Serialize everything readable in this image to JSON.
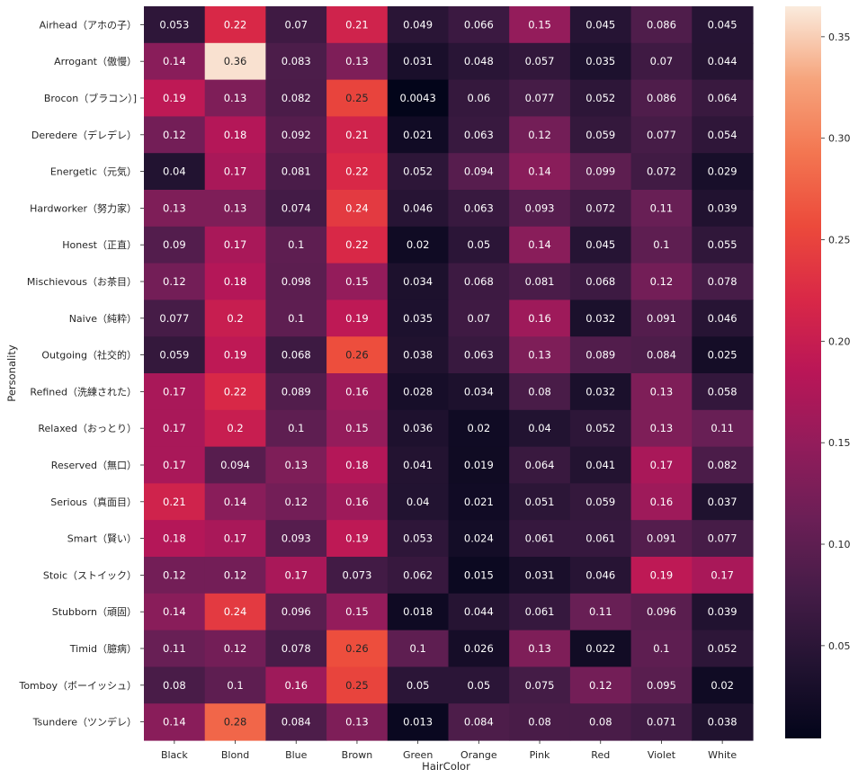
{
  "chart_data": {
    "type": "heatmap",
    "title": "",
    "xlabel": "HairColor",
    "ylabel": "Personality",
    "x_categories": [
      "Black",
      "Blond",
      "Blue",
      "Brown",
      "Green",
      "Orange",
      "Pink",
      "Red",
      "Violet",
      "White"
    ],
    "y_categories": [
      "Airhead（アホの子）",
      "Arrogant（傲慢）",
      "Brocon（ブラコン）]",
      "Deredere（デレデレ）",
      "Energetic（元気）",
      "Hardworker（努力家）",
      "Honest（正直）",
      "Mischievous（お茶目）",
      "Naive（純粋）",
      "Outgoing（社交的）",
      "Refined（洗練された）",
      "Relaxed（おっとり）",
      "Reserved（無口）",
      "Serious（真面目）",
      "Smart（賢い）",
      "Stoic（ストイック）",
      "Stubborn（頑固）",
      "Timid（臆病）",
      "Tomboy（ボーイッシュ）",
      "Tsundere（ツンデレ）"
    ],
    "values": [
      [
        0.053,
        0.22,
        0.07,
        0.21,
        0.049,
        0.066,
        0.15,
        0.045,
        0.086,
        0.045
      ],
      [
        0.14,
        0.36,
        0.083,
        0.13,
        0.031,
        0.048,
        0.057,
        0.035,
        0.07,
        0.044
      ],
      [
        0.19,
        0.13,
        0.082,
        0.25,
        0.0043,
        0.06,
        0.077,
        0.052,
        0.086,
        0.064
      ],
      [
        0.12,
        0.18,
        0.092,
        0.21,
        0.021,
        0.063,
        0.12,
        0.059,
        0.077,
        0.054
      ],
      [
        0.04,
        0.17,
        0.081,
        0.22,
        0.052,
        0.094,
        0.14,
        0.099,
        0.072,
        0.029
      ],
      [
        0.13,
        0.13,
        0.074,
        0.24,
        0.046,
        0.063,
        0.093,
        0.072,
        0.11,
        0.039
      ],
      [
        0.09,
        0.17,
        0.1,
        0.22,
        0.02,
        0.05,
        0.14,
        0.045,
        0.1,
        0.055
      ],
      [
        0.12,
        0.18,
        0.098,
        0.15,
        0.034,
        0.068,
        0.081,
        0.068,
        0.12,
        0.078
      ],
      [
        0.077,
        0.2,
        0.1,
        0.19,
        0.035,
        0.07,
        0.16,
        0.032,
        0.091,
        0.046
      ],
      [
        0.059,
        0.19,
        0.068,
        0.26,
        0.038,
        0.063,
        0.13,
        0.089,
        0.084,
        0.025
      ],
      [
        0.17,
        0.22,
        0.089,
        0.16,
        0.028,
        0.034,
        0.08,
        0.032,
        0.13,
        0.058
      ],
      [
        0.17,
        0.2,
        0.1,
        0.15,
        0.036,
        0.02,
        0.04,
        0.052,
        0.13,
        0.11
      ],
      [
        0.17,
        0.094,
        0.13,
        0.18,
        0.041,
        0.019,
        0.064,
        0.041,
        0.17,
        0.082
      ],
      [
        0.21,
        0.14,
        0.12,
        0.16,
        0.04,
        0.021,
        0.051,
        0.059,
        0.16,
        0.037
      ],
      [
        0.18,
        0.17,
        0.093,
        0.19,
        0.053,
        0.024,
        0.061,
        0.061,
        0.091,
        0.077
      ],
      [
        0.12,
        0.12,
        0.17,
        0.073,
        0.062,
        0.015,
        0.031,
        0.046,
        0.19,
        0.17
      ],
      [
        0.14,
        0.24,
        0.096,
        0.15,
        0.018,
        0.044,
        0.061,
        0.11,
        0.096,
        0.039
      ],
      [
        0.11,
        0.12,
        0.078,
        0.26,
        0.1,
        0.026,
        0.13,
        0.022,
        0.1,
        0.052
      ],
      [
        0.08,
        0.1,
        0.16,
        0.25,
        0.05,
        0.05,
        0.075,
        0.12,
        0.095,
        0.02
      ],
      [
        0.14,
        0.28,
        0.084,
        0.13,
        0.013,
        0.084,
        0.08,
        0.08,
        0.071,
        0.038
      ]
    ],
    "vmin": 0.0043,
    "vmax": 0.365,
    "colormap": "rocket",
    "colorbar": {
      "ticks": [
        0.05,
        0.1,
        0.15,
        0.2,
        0.25,
        0.3,
        0.35
      ],
      "tick_labels": [
        "0.05",
        "0.10",
        "0.15",
        "0.20",
        "0.25",
        "0.30",
        "0.35"
      ]
    },
    "annotations": true,
    "grid": false,
    "legend": "colorbar-right"
  },
  "colormap_stops": [
    [
      0.0,
      "#03051a"
    ],
    [
      0.1,
      "#221331"
    ],
    [
      0.2,
      "#451c47"
    ],
    [
      0.3,
      "#6b1f56"
    ],
    [
      0.4,
      "#921c5b"
    ],
    [
      0.5,
      "#b91657"
    ],
    [
      0.6,
      "#d92847"
    ],
    [
      0.7,
      "#ec4a3b"
    ],
    [
      0.8,
      "#f37651"
    ],
    [
      0.9,
      "#f6a47c"
    ],
    [
      1.0,
      "#faebdd"
    ]
  ]
}
